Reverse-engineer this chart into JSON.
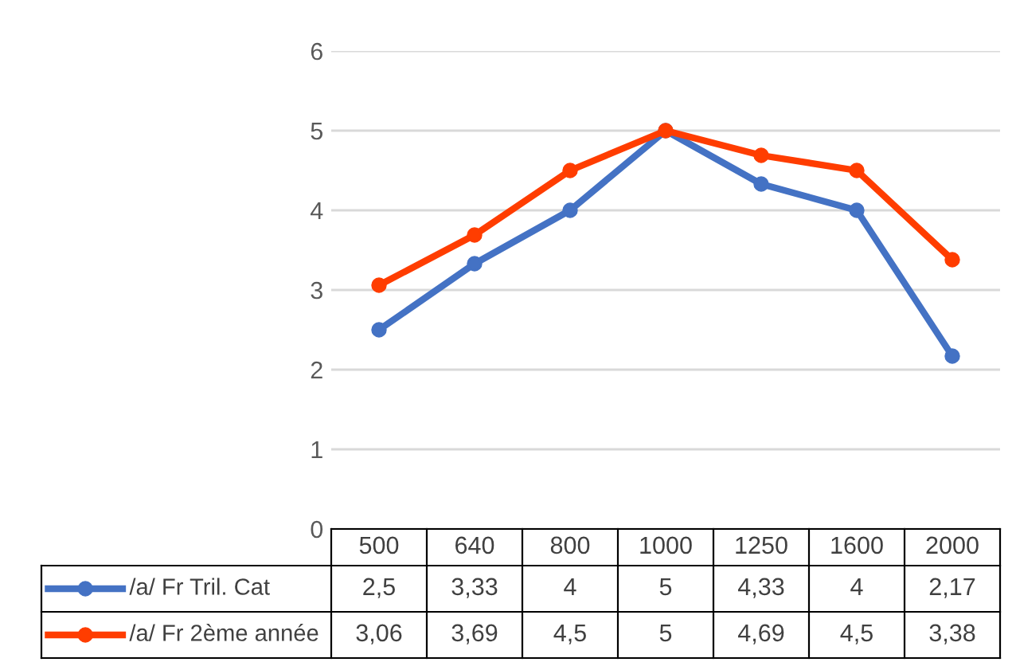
{
  "chart_data": {
    "type": "line",
    "categories": [
      "500",
      "640",
      "800",
      "1000",
      "1250",
      "1600",
      "2000"
    ],
    "series": [
      {
        "name": "/a/ Fr Tril. Cat",
        "color": "#4472c4",
        "values": [
          2.5,
          3.33,
          4,
          5,
          4.33,
          4,
          2.17
        ],
        "value_labels": [
          "2,5",
          "3,33",
          "4",
          "5",
          "4,33",
          "4",
          "2,17"
        ]
      },
      {
        "name": "/a/ Fr 2ème année",
        "color": "#ff3d00",
        "values": [
          3.06,
          3.69,
          4.5,
          5,
          4.69,
          4.5,
          3.38
        ],
        "value_labels": [
          "3,06",
          "3,69",
          "4,5",
          "5",
          "4,69",
          "4,5",
          "3,38"
        ]
      }
    ],
    "ylim": [
      0,
      6
    ],
    "yticks": [
      0,
      1,
      2,
      3,
      4,
      5,
      6
    ],
    "grid": "y",
    "marker": "circle",
    "line_style": "solid",
    "legend": "bottom",
    "tick_labels": "y"
  }
}
